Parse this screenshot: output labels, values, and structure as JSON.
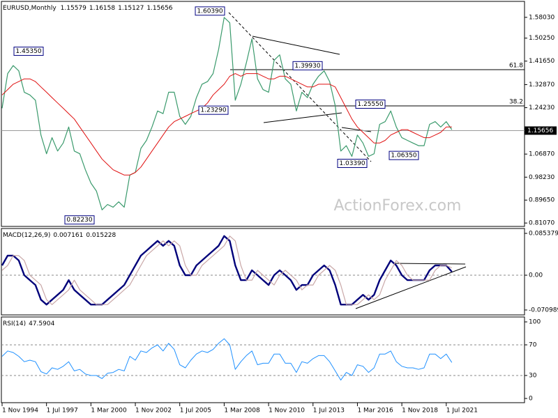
{
  "chart_data": [
    {
      "type": "line",
      "title": "EURUSD,Monthly",
      "ohlc": [
        1.15579,
        1.16158,
        1.15127,
        1.15656
      ],
      "categories": [
        "1 Nov 1994",
        null,
        null,
        null,
        null,
        null,
        null,
        null,
        "1 Jul 1997",
        null,
        null,
        null,
        null,
        null,
        null,
        null,
        "1 Mar 2000",
        null,
        null,
        null,
        null,
        null,
        null,
        null,
        "1 Nov 2002",
        null,
        null,
        null,
        null,
        null,
        null,
        null,
        "1 Jul 2005",
        null,
        null,
        null,
        null,
        null,
        null,
        null,
        "1 Mar 2008",
        null,
        null,
        null,
        null,
        null,
        null,
        null,
        "1 Nov 2010",
        null,
        null,
        null,
        null,
        null,
        null,
        null,
        "1 Jul 2013",
        null,
        null,
        null,
        null,
        null,
        null,
        null,
        "1 Mar 2016",
        null,
        null,
        null,
        null,
        null,
        null,
        null,
        "1 Nov 2018",
        null,
        null,
        null,
        null,
        null,
        null,
        null,
        "1 Jul 2021",
        null
      ],
      "series": [
        {
          "color": "#3a9a6c",
          "values": [
            1.24,
            1.37,
            1.4,
            1.38,
            1.3,
            1.29,
            1.27,
            1.14,
            1.07,
            1.13,
            1.08,
            1.11,
            1.17,
            1.08,
            1.07,
            1.01,
            0.96,
            0.93,
            0.86,
            0.88,
            0.87,
            0.89,
            0.87,
            0.99,
            1.0,
            1.09,
            1.12,
            1.17,
            1.23,
            1.22,
            1.3,
            1.3,
            1.21,
            1.18,
            1.21,
            1.28,
            1.33,
            1.34,
            1.37,
            1.46,
            1.58,
            1.56,
            1.27,
            1.33,
            1.41,
            1.5,
            1.35,
            1.31,
            1.3,
            1.42,
            1.44,
            1.35,
            1.33,
            1.23,
            1.3,
            1.28,
            1.33,
            1.36,
            1.38,
            1.34,
            1.25,
            1.08,
            1.1,
            1.06,
            1.14,
            1.11,
            1.06,
            1.07,
            1.18,
            1.19,
            1.23,
            1.17,
            1.13,
            1.12,
            1.11,
            1.1,
            1.1,
            1.18,
            1.19,
            1.17,
            1.19,
            1.16
          ]
        },
        {
          "color": "#e01010",
          "values": [
            1.29,
            1.31,
            1.33,
            1.34,
            1.35,
            1.35,
            1.34,
            1.32,
            1.3,
            1.28,
            1.26,
            1.24,
            1.22,
            1.2,
            1.17,
            1.14,
            1.11,
            1.08,
            1.05,
            1.03,
            1.01,
            1.0,
            0.99,
            0.99,
            1.0,
            1.02,
            1.05,
            1.08,
            1.11,
            1.14,
            1.17,
            1.19,
            1.2,
            1.21,
            1.22,
            1.23,
            1.24,
            1.26,
            1.29,
            1.31,
            1.33,
            1.36,
            1.37,
            1.36,
            1.37,
            1.37,
            1.37,
            1.36,
            1.35,
            1.35,
            1.36,
            1.36,
            1.35,
            1.34,
            1.33,
            1.32,
            1.32,
            1.33,
            1.33,
            1.33,
            1.32,
            1.28,
            1.24,
            1.2,
            1.17,
            1.15,
            1.13,
            1.11,
            1.11,
            1.12,
            1.14,
            1.15,
            1.16,
            1.16,
            1.15,
            1.14,
            1.13,
            1.13,
            1.14,
            1.15,
            1.17,
            1.17
          ]
        }
      ],
      "ylim": [
        0.798,
        1.64
      ],
      "yticks": [
        {
          "value": 1.5803,
          "label": "1.58030"
        },
        {
          "value": 1.5025,
          "label": "1.50250"
        },
        {
          "value": 1.4165,
          "label": "1.41650"
        },
        {
          "value": 1.3287,
          "label": "1.32870"
        },
        {
          "value": 1.2423,
          "label": "1.24230"
        },
        {
          "value": 1.0687,
          "label": "1.06870"
        },
        {
          "value": 0.9823,
          "label": "0.98230"
        },
        {
          "value": 0.8965,
          "label": "0.89650"
        },
        {
          "value": 0.8107,
          "label": "0.81070"
        }
      ],
      "current_price": 1.15656,
      "annotations": [
        {
          "value": 1.6039,
          "label": "1.60390"
        },
        {
          "value": 1.4535,
          "label": "1.45350"
        },
        {
          "value": 1.3993,
          "label": "1.39930"
        },
        {
          "value": 1.2329,
          "label": "1.23290"
        },
        {
          "value": 1.2555,
          "label": "1.25550"
        },
        {
          "value": 1.0339,
          "label": "1.03390"
        },
        {
          "value": 1.0635,
          "label": "1.06350"
        },
        {
          "value": 0.8223,
          "label": "0.82230"
        }
      ],
      "fib_levels": [
        61.8,
        38.2
      ],
      "watermark": "ActionForex.com"
    },
    {
      "type": "line",
      "title": "MACD(12,26,9)",
      "readout": [
        0.007161,
        0.015228
      ],
      "series": [
        {
          "color": "#00007a",
          "values": [
            0.02,
            0.04,
            0.04,
            0.03,
            0,
            -0.01,
            -0.02,
            -0.05,
            -0.06,
            -0.05,
            -0.04,
            -0.03,
            -0.01,
            -0.03,
            -0.04,
            -0.05,
            -0.06,
            -0.06,
            -0.06,
            -0.05,
            -0.04,
            -0.03,
            -0.02,
            0,
            0.02,
            0.04,
            0.05,
            0.06,
            0.07,
            0.06,
            0.07,
            0.06,
            0.02,
            0,
            0,
            0.02,
            0.03,
            0.04,
            0.05,
            0.06,
            0.08,
            0.07,
            0.02,
            -0.01,
            -0.01,
            0.01,
            0,
            -0.01,
            -0.02,
            0,
            0.01,
            0,
            -0.01,
            -0.03,
            -0.02,
            -0.02,
            0,
            0.01,
            0.02,
            0.01,
            -0.02,
            -0.06,
            -0.06,
            -0.06,
            -0.05,
            -0.04,
            -0.05,
            -0.04,
            -0.01,
            0.01,
            0.03,
            0.02,
            0,
            -0.01,
            -0.01,
            -0.01,
            -0.01,
            0.01,
            0.02,
            0.02,
            0.02,
            0.007
          ]
        },
        {
          "color": "#c9a7a7",
          "values": [
            0.01,
            0.02,
            0.04,
            0.04,
            0.03,
            0,
            -0.01,
            -0.02,
            -0.05,
            -0.06,
            -0.05,
            -0.04,
            -0.03,
            -0.01,
            -0.03,
            -0.04,
            -0.05,
            -0.06,
            -0.06,
            -0.06,
            -0.05,
            -0.04,
            -0.03,
            -0.02,
            0,
            0.02,
            0.04,
            0.05,
            0.06,
            0.07,
            0.06,
            0.07,
            0.06,
            0.02,
            0,
            0,
            0.02,
            0.03,
            0.04,
            0.05,
            0.06,
            0.08,
            0.07,
            0.02,
            -0.01,
            -0.01,
            0.01,
            0,
            -0.01,
            -0.02,
            0,
            0.01,
            0,
            -0.01,
            -0.03,
            -0.02,
            -0.02,
            0,
            0.01,
            0.02,
            0.01,
            -0.02,
            -0.06,
            -0.06,
            -0.06,
            -0.05,
            -0.04,
            -0.05,
            -0.04,
            -0.01,
            0.01,
            0.03,
            0.02,
            0,
            -0.01,
            -0.01,
            -0.01,
            -0.01,
            0.01,
            0.02,
            0.02,
            0.015
          ]
        }
      ],
      "ylim": [
        -0.081,
        0.0953
      ],
      "yticks": [
        0.085379,
        {
          "value": 0,
          "label": "0.00"
        },
        -0.070989
      ],
      "levels": [
        0
      ]
    },
    {
      "type": "line",
      "title": "RSI(14)",
      "readout": [
        47.5904
      ],
      "series": [
        {
          "color": "#1e90ff",
          "values": [
            55,
            62,
            60,
            55,
            48,
            50,
            48,
            35,
            32,
            40,
            38,
            42,
            48,
            36,
            38,
            32,
            30,
            30,
            26,
            33,
            34,
            38,
            36,
            55,
            50,
            62,
            60,
            66,
            70,
            62,
            72,
            64,
            44,
            40,
            50,
            58,
            62,
            60,
            64,
            72,
            78,
            70,
            38,
            48,
            56,
            62,
            44,
            46,
            46,
            58,
            58,
            46,
            46,
            34,
            48,
            46,
            52,
            56,
            56,
            48,
            36,
            24,
            34,
            30,
            44,
            42,
            34,
            40,
            58,
            58,
            62,
            48,
            42,
            40,
            40,
            38,
            40,
            58,
            58,
            52,
            58,
            47
          ]
        }
      ],
      "ylim": [
        -5.5,
        106.4
      ],
      "yticks": [
        100,
        70,
        30,
        0
      ],
      "levels": [
        70,
        30
      ]
    }
  ]
}
